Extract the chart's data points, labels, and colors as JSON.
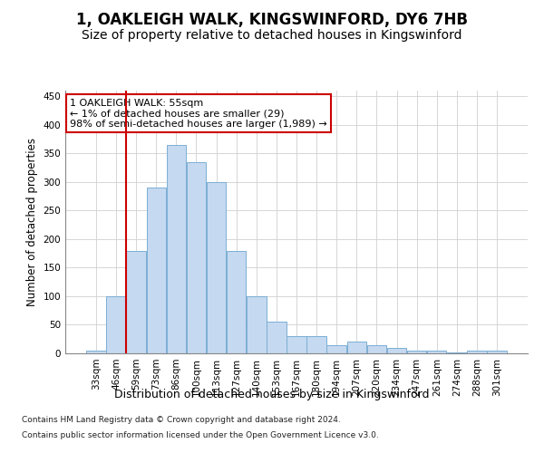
{
  "title": "1, OAKLEIGH WALK, KINGSWINFORD, DY6 7HB",
  "subtitle": "Size of property relative to detached houses in Kingswinford",
  "xlabel": "Distribution of detached houses by size in Kingswinford",
  "ylabel": "Number of detached properties",
  "footer_line1": "Contains HM Land Registry data © Crown copyright and database right 2024.",
  "footer_line2": "Contains public sector information licensed under the Open Government Licence v3.0.",
  "categories": [
    "33sqm",
    "46sqm",
    "59sqm",
    "73sqm",
    "86sqm",
    "100sqm",
    "113sqm",
    "127sqm",
    "140sqm",
    "153sqm",
    "167sqm",
    "180sqm",
    "194sqm",
    "207sqm",
    "220sqm",
    "234sqm",
    "247sqm",
    "261sqm",
    "274sqm",
    "288sqm",
    "301sqm"
  ],
  "values": [
    5,
    100,
    180,
    290,
    365,
    335,
    300,
    180,
    100,
    55,
    30,
    30,
    15,
    20,
    15,
    10,
    5,
    5,
    2,
    5,
    4
  ],
  "bar_color": "#c5d9f0",
  "bar_edge_color": "#7bafd4",
  "grid_color": "#d0d0d0",
  "vline_x_index": 1.5,
  "vline_color": "#cc0000",
  "annotation_text": "1 OAKLEIGH WALK: 55sqm\n← 1% of detached houses are smaller (29)\n98% of semi-detached houses are larger (1,989) →",
  "annotation_box_edge_color": "#cc0000",
  "annotation_box_face_color": "#ffffff",
  "ylim": [
    0,
    460
  ],
  "yticks": [
    0,
    50,
    100,
    150,
    200,
    250,
    300,
    350,
    400,
    450
  ],
  "title_fontsize": 12,
  "subtitle_fontsize": 10,
  "xlabel_fontsize": 9,
  "ylabel_fontsize": 8.5,
  "tick_fontsize": 7.5,
  "annotation_fontsize": 8,
  "footer_fontsize": 6.5,
  "background_color": "#ffffff"
}
